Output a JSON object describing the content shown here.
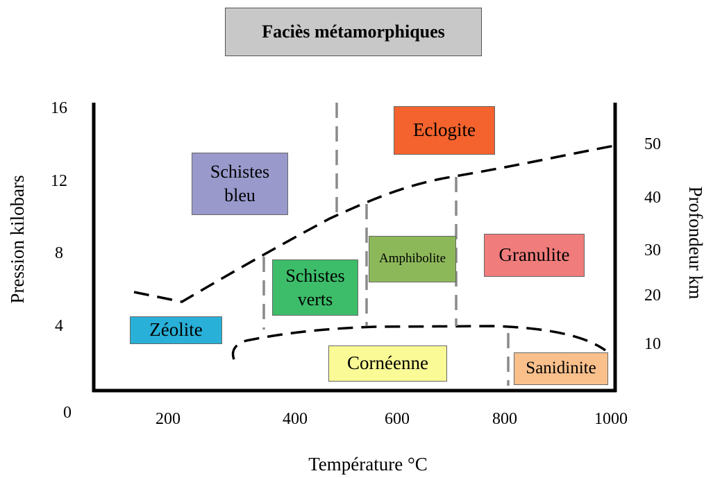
{
  "title": "Faciès métamorphiques",
  "axes": {
    "x_label": "Température °C",
    "y_label": "Pression kilobars",
    "y2_label": "Profondeur km",
    "x_ticks": [
      "200",
      "400",
      "600",
      "800",
      "1000"
    ],
    "y_ticks": [
      "16",
      "12",
      "8",
      "4",
      "0"
    ],
    "y2_ticks": [
      "50",
      "40",
      "30",
      "20",
      "10"
    ]
  },
  "facies": [
    {
      "id": "eclogite",
      "label": "Eclogite",
      "color": "#f4622d"
    },
    {
      "id": "schistes-bleu",
      "label": "Schistes bleu",
      "color": "#9999cc"
    },
    {
      "id": "amphibolite",
      "label": "Amphibolite",
      "color": "#8db85a"
    },
    {
      "id": "granulite",
      "label": "Granulite",
      "color": "#f07c7c"
    },
    {
      "id": "schistes-verts",
      "label": "Schistes verts",
      "color": "#3dbd6a"
    },
    {
      "id": "zeolite",
      "label": "Zéolite",
      "color": "#29b0d8"
    },
    {
      "id": "corneenne",
      "label": "Cornéenne",
      "color": "#fafa96"
    },
    {
      "id": "sanidinite",
      "label": "Sanidinite",
      "color": "#f9c08c"
    }
  ]
}
